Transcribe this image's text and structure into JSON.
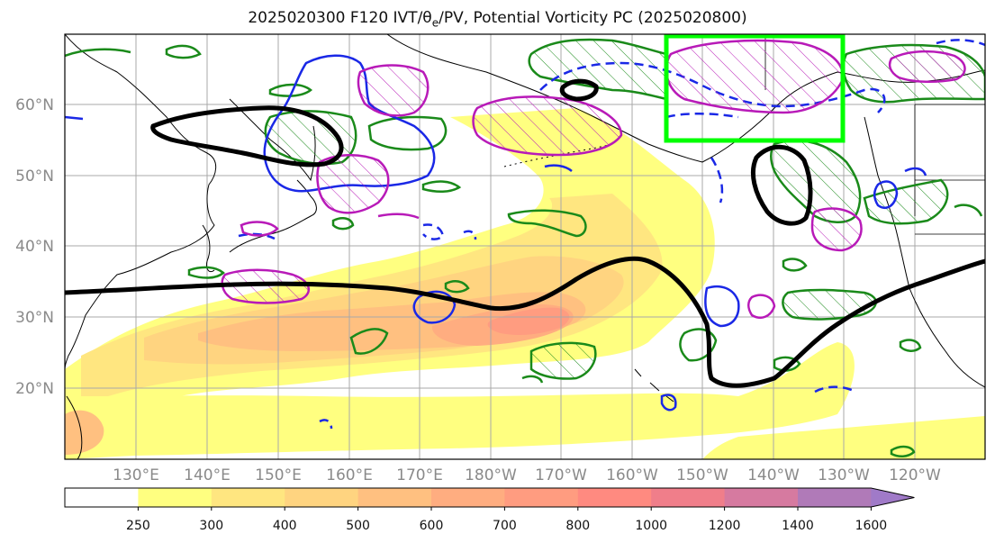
{
  "title": "2025020300 F120 IVT/θe/PV, Potential Vorticity PC (2025020800)",
  "lon_labels": [
    "130°E",
    "140°E",
    "150°E",
    "160°E",
    "170°E",
    "180°W",
    "170°W",
    "160°W",
    "150°W",
    "140°W",
    "130°W",
    "120°W"
  ],
  "lat_labels": [
    "60°N",
    "50°N",
    "40°N",
    "30°N",
    "20°N"
  ],
  "colorbar": {
    "levels": [
      "250",
      "300",
      "400",
      "500",
      "600",
      "700",
      "800",
      "1000",
      "1200",
      "1400",
      "1600"
    ],
    "colors": [
      "#ffffff",
      "#ffff80",
      "#ffe680",
      "#ffd480",
      "#ffc080",
      "#ffad80",
      "#ff9c80",
      "#ff8a80",
      "#f07e8a",
      "#d67aa0",
      "#b07ab8",
      "#a07ac8"
    ]
  },
  "colors": {
    "green_contour": "#1a8a1a",
    "blue_contour": "#1a28e6",
    "magenta_contour": "#b81ab8",
    "black_contour": "#000000",
    "highlight_box": "#00ff00"
  }
}
